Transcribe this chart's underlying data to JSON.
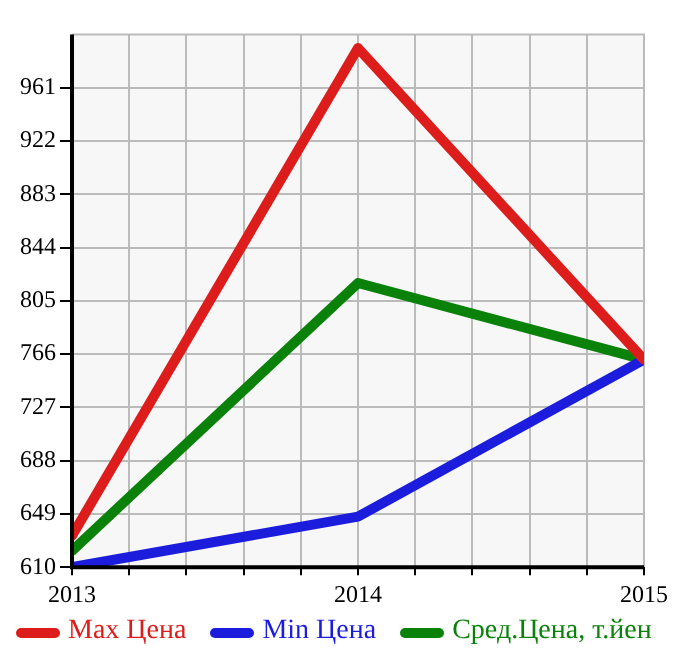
{
  "chart_data": {
    "type": "line",
    "x": [
      2013,
      2014,
      2015
    ],
    "xlim": [
      2013,
      2015
    ],
    "xticks": [
      2013,
      {
        "value": 2013.2,
        "label": null
      },
      {
        "value": 2013.4,
        "label": null
      },
      {
        "value": 2013.6,
        "label": null
      },
      {
        "value": 2013.8,
        "label": null
      },
      2014,
      {
        "value": 2014.2,
        "label": null
      },
      {
        "value": 2014.4,
        "label": null
      },
      {
        "value": 2014.6,
        "label": null
      },
      {
        "value": 2014.8,
        "label": null
      },
      2015
    ],
    "ylim": [
      610,
      1000
    ],
    "yticks": [
      610,
      649,
      688,
      727,
      766,
      805,
      844,
      883,
      922,
      961
    ],
    "grid": true,
    "legend": "bottom",
    "marker": "none",
    "line_style": "solid",
    "series": [
      {
        "name": "Max Цена",
        "color": "#dd1c1c",
        "values": [
          633,
          990,
          762
        ]
      },
      {
        "name": "Min Цена",
        "color": "#1c1cdd",
        "values": [
          610,
          647,
          762
        ]
      },
      {
        "name": "Сред.Цена, т.йен",
        "color": "#0a820a",
        "values": [
          622,
          818,
          762
        ]
      }
    ]
  }
}
